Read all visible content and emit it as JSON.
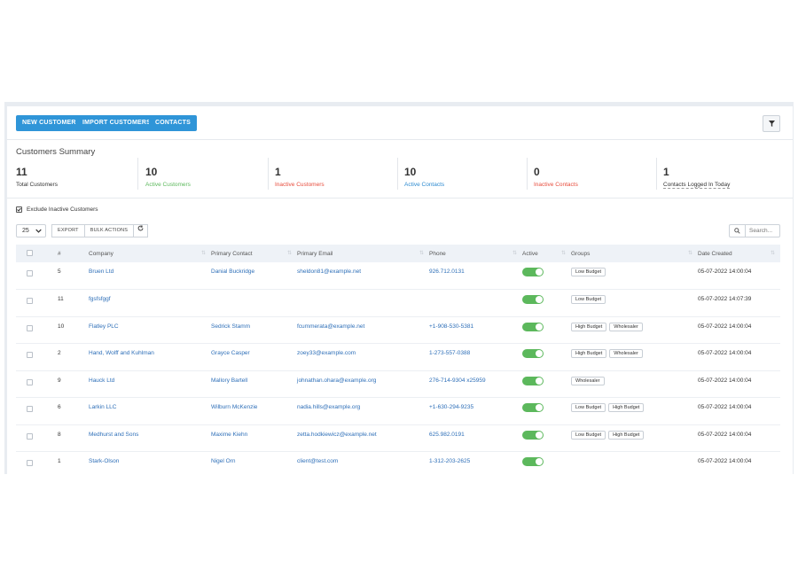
{
  "toolbar": {
    "new_customer": "NEW CUSTOMER",
    "import_customers": "IMPORT CUSTOMERS",
    "contacts": "CONTACTS"
  },
  "summary": {
    "title": "Customers Summary",
    "stats": [
      {
        "value": "11",
        "label": "Total Customers",
        "color": "#333333"
      },
      {
        "value": "10",
        "label": "Active Customers",
        "color": "#5cb85c"
      },
      {
        "value": "1",
        "label": "Inactive Customers",
        "color": "#e74c3c"
      },
      {
        "value": "10",
        "label": "Active Contacts",
        "color": "#2e8bd0"
      },
      {
        "value": "0",
        "label": "Inactive Contacts",
        "color": "#e74c3c"
      },
      {
        "value": "1",
        "label": "Contacts Logged In Today",
        "color": "#333333"
      }
    ]
  },
  "filters": {
    "exclude_inactive_label": "Exclude Inactive Customers",
    "exclude_inactive_checked": true,
    "page_size": "25",
    "export_label": "EXPORT",
    "bulk_actions_label": "BULK ACTIONS",
    "search_placeholder": "Search..."
  },
  "table": {
    "columns": [
      "#",
      "Company",
      "Primary Contact",
      "Primary Email",
      "Phone",
      "Active",
      "Groups",
      "Date Created"
    ],
    "rows": [
      {
        "id": "5",
        "company": "Bruen Ltd",
        "contact": "Danial Buckridge",
        "email": "sheldon81@example.net",
        "phone": "926.712.0131",
        "active": true,
        "groups": [
          "Low Budget"
        ],
        "date": "05-07-2022 14:00:04"
      },
      {
        "id": "11",
        "company": "fgsfsfggf",
        "contact": "",
        "email": "",
        "phone": "",
        "active": true,
        "groups": [
          "Low Budget"
        ],
        "date": "05-07-2022 14:07:39"
      },
      {
        "id": "10",
        "company": "Flatley PLC",
        "contact": "Sedrick Stamm",
        "email": "fcummerata@example.net",
        "phone": "+1-908-530-5381",
        "active": true,
        "groups": [
          "High Budget",
          "Wholesaler"
        ],
        "date": "05-07-2022 14:00:04"
      },
      {
        "id": "2",
        "company": "Hand, Wolff and Kuhlman",
        "contact": "Grayce Casper",
        "email": "zoey33@example.com",
        "phone": "1-273-557-0388",
        "active": true,
        "groups": [
          "High Budget",
          "Wholesaler"
        ],
        "date": "05-07-2022 14:00:04"
      },
      {
        "id": "9",
        "company": "Hauck Ltd",
        "contact": "Mallory Bartell",
        "email": "johnathan.ohara@example.org",
        "phone": "276-714-9304 x25959",
        "active": true,
        "groups": [
          "Wholesaler"
        ],
        "date": "05-07-2022 14:00:04"
      },
      {
        "id": "6",
        "company": "Larkin LLC",
        "contact": "Wilburn McKenzie",
        "email": "nadia.hills@example.org",
        "phone": "+1-630-294-9235",
        "active": true,
        "groups": [
          "Low Budget",
          "High Budget"
        ],
        "date": "05-07-2022 14:00:04"
      },
      {
        "id": "8",
        "company": "Medhurst and Sons",
        "contact": "Maxime Kiehn",
        "email": "zetta.hodkiewicz@example.net",
        "phone": "625.982.0191",
        "active": true,
        "groups": [
          "Low Budget",
          "High Budget"
        ],
        "date": "05-07-2022 14:00:04"
      },
      {
        "id": "1",
        "company": "Stark-Olson",
        "contact": "Nigel Orn",
        "email": "client@test.com",
        "phone": "1-312-203-2625",
        "active": true,
        "groups": [],
        "date": "05-07-2022 14:00:04"
      }
    ]
  }
}
